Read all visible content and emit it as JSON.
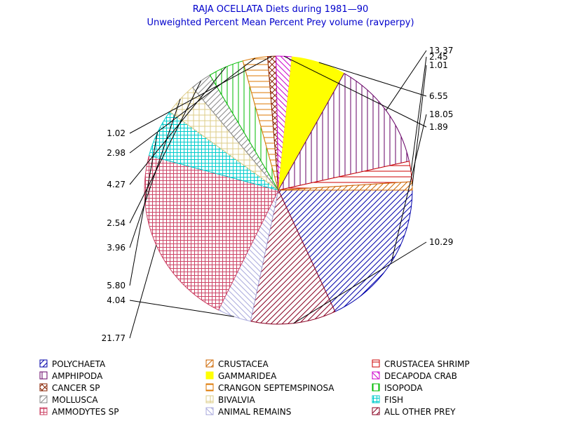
{
  "chart_data": {
    "type": "pie",
    "title": "RAJA OCELLATA Diets during 1981—90",
    "subtitle": "Unweighted Percent Mean Percent Prey  volume (ravperpy)",
    "slices": [
      {
        "name": "POLYCHAETA",
        "value": 18.05,
        "color": "#0000aa",
        "pattern": "diag-up"
      },
      {
        "name": "ALL OTHER PREY",
        "value": 10.29,
        "color": "#880022",
        "pattern": "diag-up"
      },
      {
        "name": "ANIMAL REMAINS",
        "value": 4.04,
        "color": "#aaaadd",
        "pattern": "diag-down"
      },
      {
        "name": "AMMODYTES SP",
        "value": 21.77,
        "color": "#cc4466",
        "pattern": "crosshatch"
      },
      {
        "name": "FISH",
        "value": 5.8,
        "color": "#00cccc",
        "pattern": "crosshatch"
      },
      {
        "name": "BIVALVIA",
        "value": 3.96,
        "color": "#ddcc88",
        "pattern": "grid"
      },
      {
        "name": "MOLLUSCA",
        "value": 2.54,
        "color": "#888888",
        "pattern": "diag-up"
      },
      {
        "name": "ISOPODA",
        "value": 4.27,
        "color": "#00bb00",
        "pattern": "vertical"
      },
      {
        "name": "CRANGON SEPTEMSPINOSA",
        "value": 2.98,
        "color": "#dd7700",
        "pattern": "horizontal"
      },
      {
        "name": "CANCER SP",
        "value": 1.02,
        "color": "#882200",
        "pattern": "crosshatch-diag"
      },
      {
        "name": "DECAPODA CRAB",
        "value": 1.89,
        "color": "#cc00cc",
        "pattern": "diag-down"
      },
      {
        "name": "GAMMARIDEA",
        "value": 6.55,
        "color": "#ffff00",
        "pattern": "solid"
      },
      {
        "name": "AMPHIPODA",
        "value": 13.37,
        "color": "#660066",
        "pattern": "vertical"
      },
      {
        "name": "CRUSTACEA SHRIMP",
        "value": 2.45,
        "color": "#cc0000",
        "pattern": "horizontal"
      },
      {
        "name": "CRUSTACEA",
        "value": 1.01,
        "color": "#cc6600",
        "pattern": "diag-up"
      }
    ],
    "labels": [
      "18.05",
      "10.29",
      "4.04",
      "21.77",
      "5.80",
      "3.96",
      "2.54",
      "4.27",
      "2.98",
      "1.02",
      "1.89",
      "6.55",
      "13.37",
      "2.45",
      "1.01"
    ],
    "legend_position": "bottom",
    "legend": [
      [
        "POLYCHAETA",
        "CRUSTACEA",
        "CRUSTACEA SHRIMP"
      ],
      [
        "AMPHIPODA",
        "GAMMARIDEA",
        "DECAPODA CRAB"
      ],
      [
        "CANCER SP",
        "CRANGON SEPTEMSPINOSA",
        "ISOPODA"
      ],
      [
        "MOLLUSCA",
        "BIVALVIA",
        "FISH"
      ],
      [
        "AMMODYTES SP",
        "ANIMAL REMAINS",
        "ALL OTHER PREY"
      ]
    ]
  }
}
